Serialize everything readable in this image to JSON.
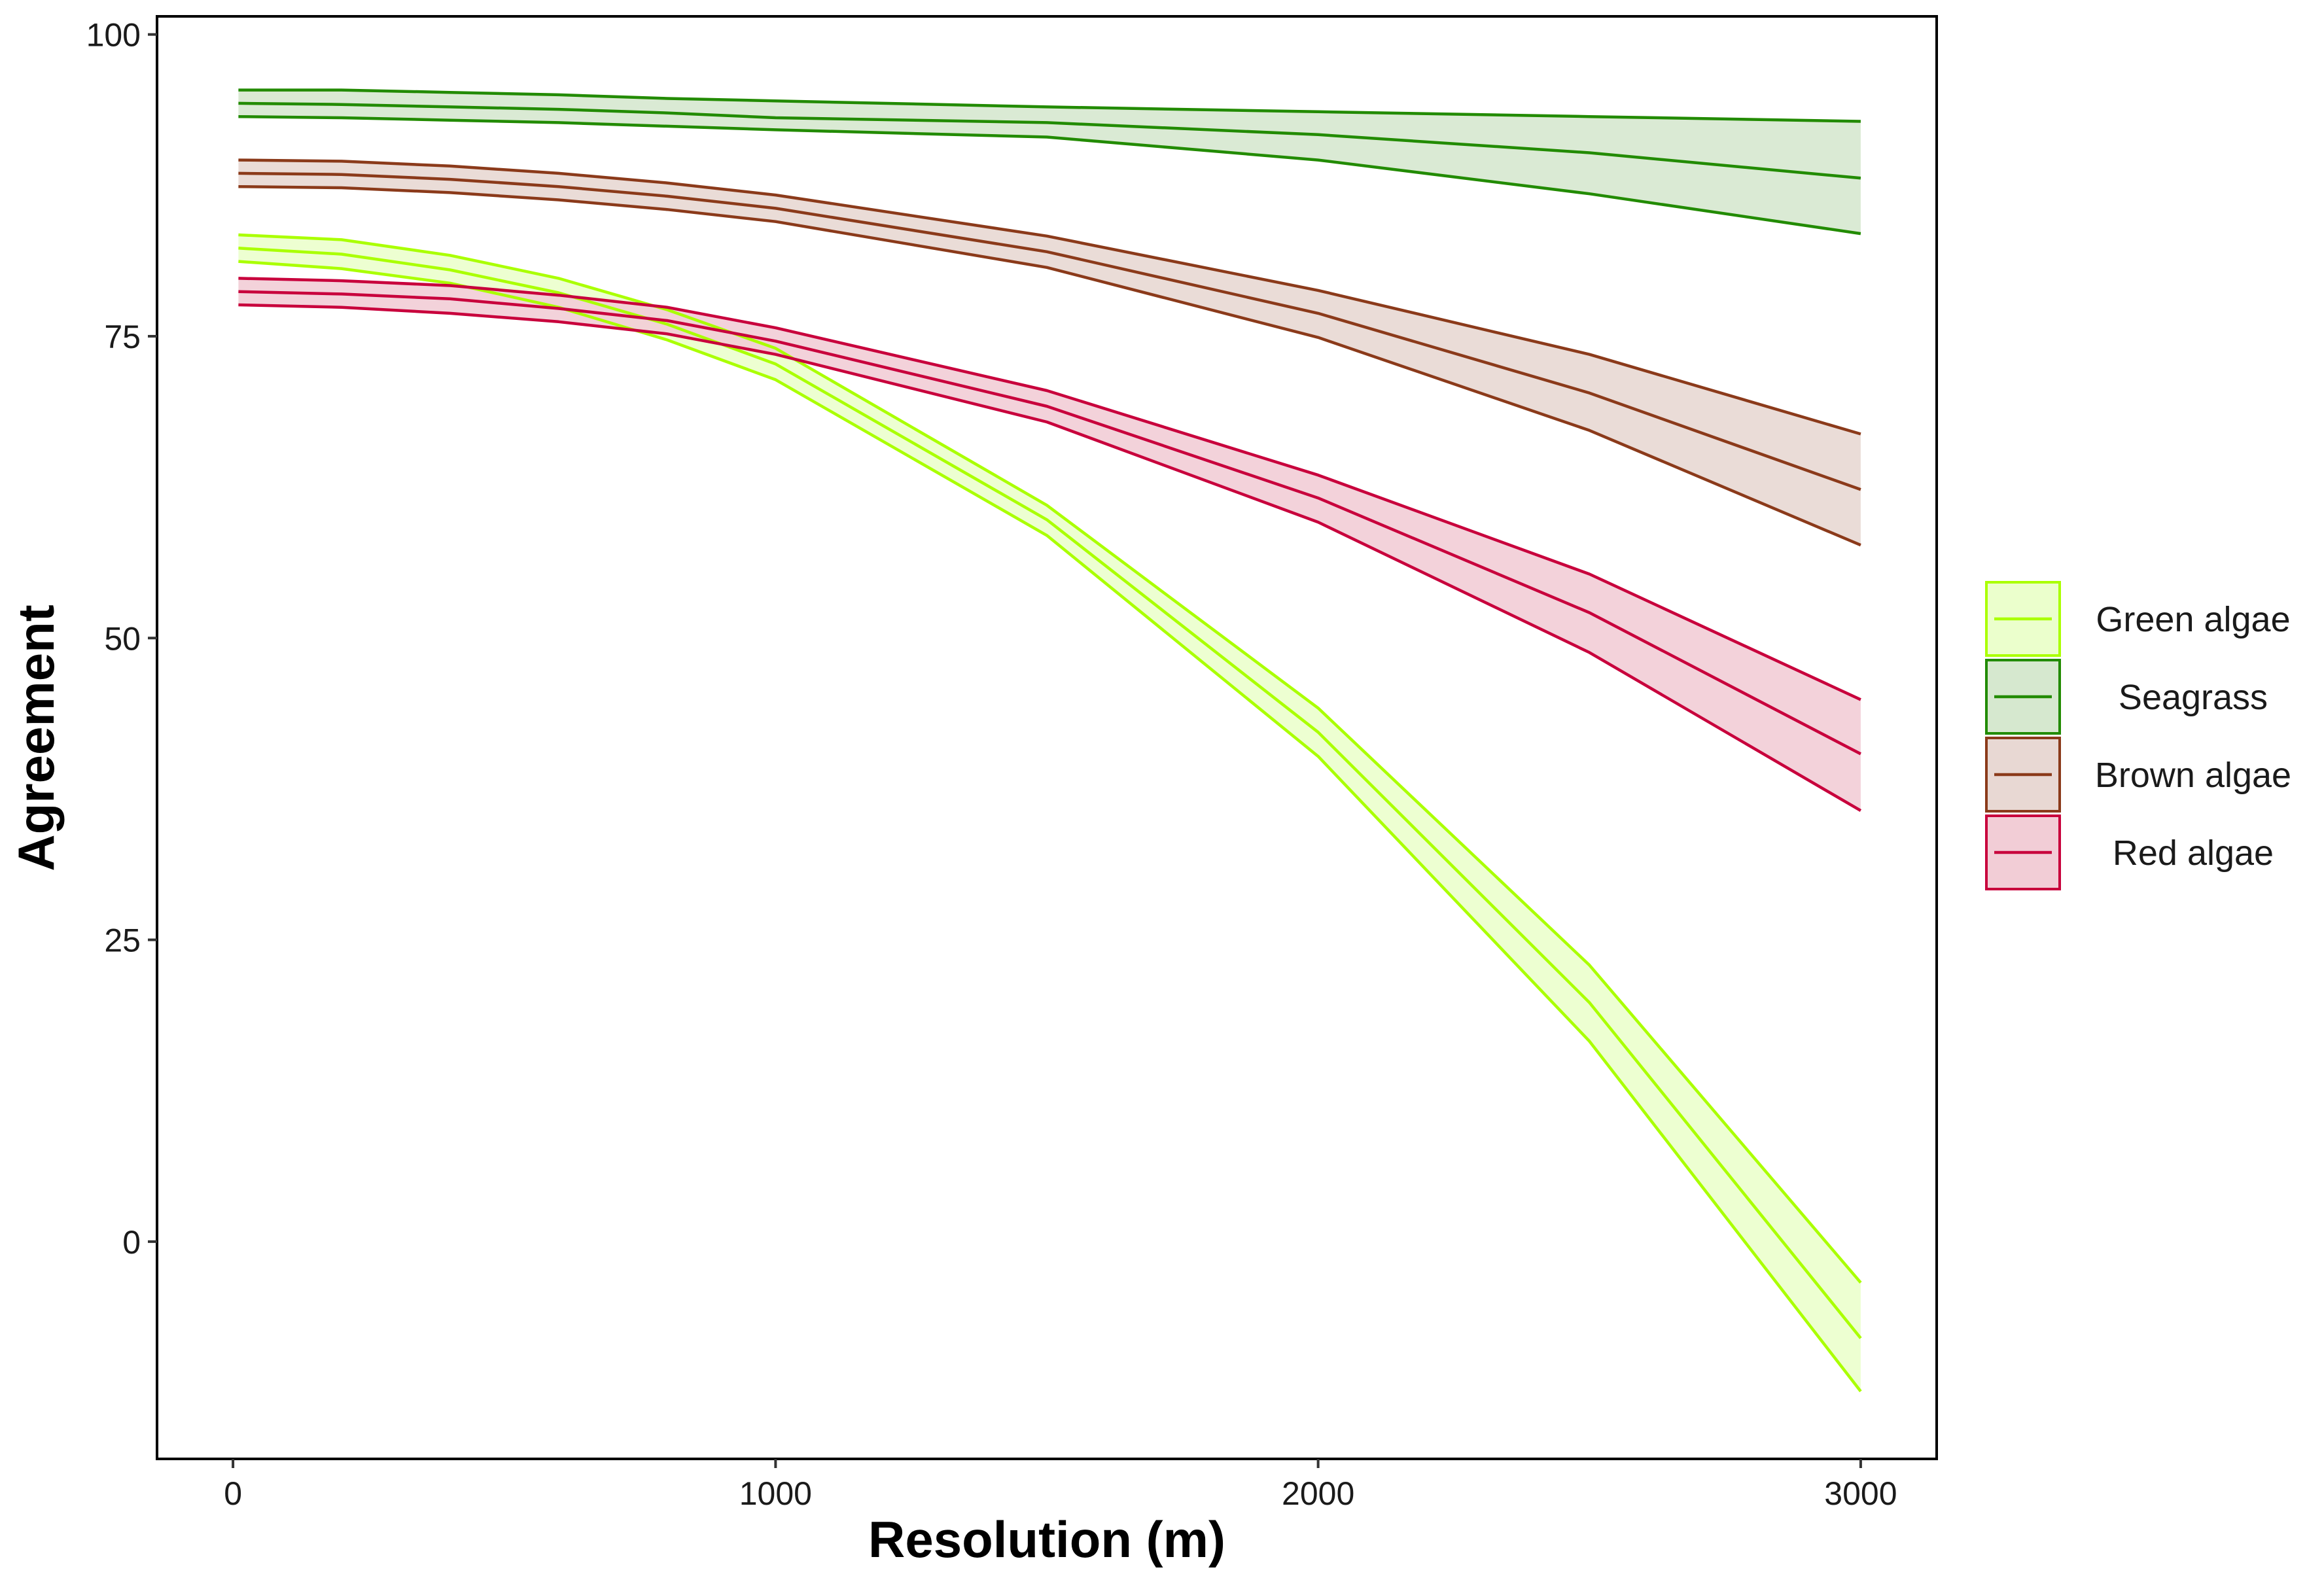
{
  "chart_data": {
    "type": "line",
    "xlabel": "Resolution (m)",
    "ylabel": "Agreement",
    "xlim": [
      -140,
      3140
    ],
    "ylim": [
      -18,
      101.5
    ],
    "x_ticks": [
      0,
      1000,
      2000,
      3000
    ],
    "y_ticks": [
      0,
      25,
      50,
      75,
      100
    ],
    "grid": false,
    "legend_position": "right",
    "x": [
      10,
      200,
      400,
      600,
      800,
      1000,
      1500,
      2000,
      2500,
      3000
    ],
    "series": [
      {
        "name": "Green algae",
        "color": "#aaff00",
        "fill": "#ebffcc",
        "values": [
          82.3,
          81.8,
          80.5,
          78.6,
          76.0,
          72.7,
          59.8,
          42.2,
          19.8,
          -8.0
        ],
        "lower": [
          81.2,
          80.6,
          79.4,
          77.4,
          74.7,
          71.4,
          58.5,
          40.2,
          16.6,
          -12.4
        ],
        "upper": [
          83.4,
          83.0,
          81.7,
          79.8,
          77.2,
          74.0,
          61.0,
          44.2,
          22.9,
          -3.4
        ]
      },
      {
        "name": "Seagrass",
        "color": "#228b00",
        "fill": "#d6e8cf",
        "values": [
          94.3,
          94.2,
          94.0,
          93.8,
          93.5,
          93.1,
          92.7,
          91.7,
          90.2,
          88.1
        ],
        "lower": [
          93.2,
          93.1,
          92.9,
          92.7,
          92.4,
          92.1,
          91.5,
          89.6,
          86.8,
          83.5
        ],
        "upper": [
          95.4,
          95.4,
          95.2,
          95.0,
          94.7,
          94.5,
          94.0,
          93.6,
          93.2,
          92.8
        ]
      },
      {
        "name": "Brown algae",
        "color": "#8b3a1a",
        "fill": "#e8d8d3",
        "values": [
          88.5,
          88.4,
          88.0,
          87.4,
          86.6,
          85.6,
          82.0,
          76.9,
          70.3,
          62.3
        ],
        "lower": [
          87.4,
          87.3,
          86.9,
          86.3,
          85.5,
          84.5,
          80.7,
          74.9,
          67.2,
          57.7
        ],
        "upper": [
          89.6,
          89.5,
          89.1,
          88.5,
          87.7,
          86.7,
          83.3,
          78.8,
          73.5,
          66.9
        ]
      },
      {
        "name": "Red algae",
        "color": "#c8003c",
        "fill": "#f2cdd6",
        "values": [
          78.7,
          78.5,
          78.1,
          77.3,
          76.3,
          74.6,
          69.2,
          61.6,
          52.1,
          40.4
        ],
        "lower": [
          77.6,
          77.4,
          76.9,
          76.2,
          75.2,
          73.5,
          67.9,
          59.6,
          48.8,
          35.7
        ],
        "upper": [
          79.8,
          79.6,
          79.2,
          78.4,
          77.4,
          75.7,
          70.5,
          63.5,
          55.3,
          44.9
        ]
      }
    ]
  }
}
